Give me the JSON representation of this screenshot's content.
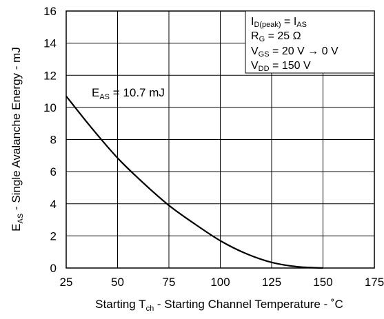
{
  "chart_data": {
    "type": "line",
    "title": "",
    "xlabel": {
      "prefix": "Starting T",
      "sub": "ch",
      "suffix": " - Starting Channel Temperature - ˚C"
    },
    "ylabel": {
      "prefix": "E",
      "sub": "AS",
      "suffix": " - Single Avalanche Energy - mJ"
    },
    "xlim": [
      25,
      175
    ],
    "ylim": [
      0,
      16
    ],
    "xticks": [
      "25",
      "50",
      "75",
      "100",
      "125",
      "150",
      "175"
    ],
    "yticks": [
      "0",
      "2",
      "4",
      "6",
      "8",
      "10",
      "12",
      "14",
      "16"
    ],
    "grid": true,
    "series": [
      {
        "x": [
          25,
          37.5,
          50,
          62.5,
          75,
          87.5,
          100,
          112.5,
          125,
          137.5,
          150
        ],
        "y": [
          10.7,
          8.7,
          6.85,
          5.3,
          3.9,
          2.75,
          1.7,
          0.9,
          0.35,
          0.08,
          0
        ]
      }
    ],
    "annotation": {
      "prefix": "E",
      "sub": "AS",
      "suffix": " = 10.7 mJ"
    },
    "conditions": [
      {
        "a": "I",
        "a_sub": "D(peak)",
        "mid": " = I",
        "b_sub": "AS",
        "rest": ""
      },
      {
        "a": "R",
        "a_sub": "G",
        "mid": " = 25 Ω",
        "b_sub": "",
        "rest": ""
      },
      {
        "a": "V",
        "a_sub": "GS",
        "mid": " = 20 V → 0 V",
        "b_sub": "",
        "rest": ""
      },
      {
        "a": "V",
        "a_sub": "DD",
        "mid": " = 150 V",
        "b_sub": "",
        "rest": ""
      }
    ],
    "line_color": "#000000"
  }
}
